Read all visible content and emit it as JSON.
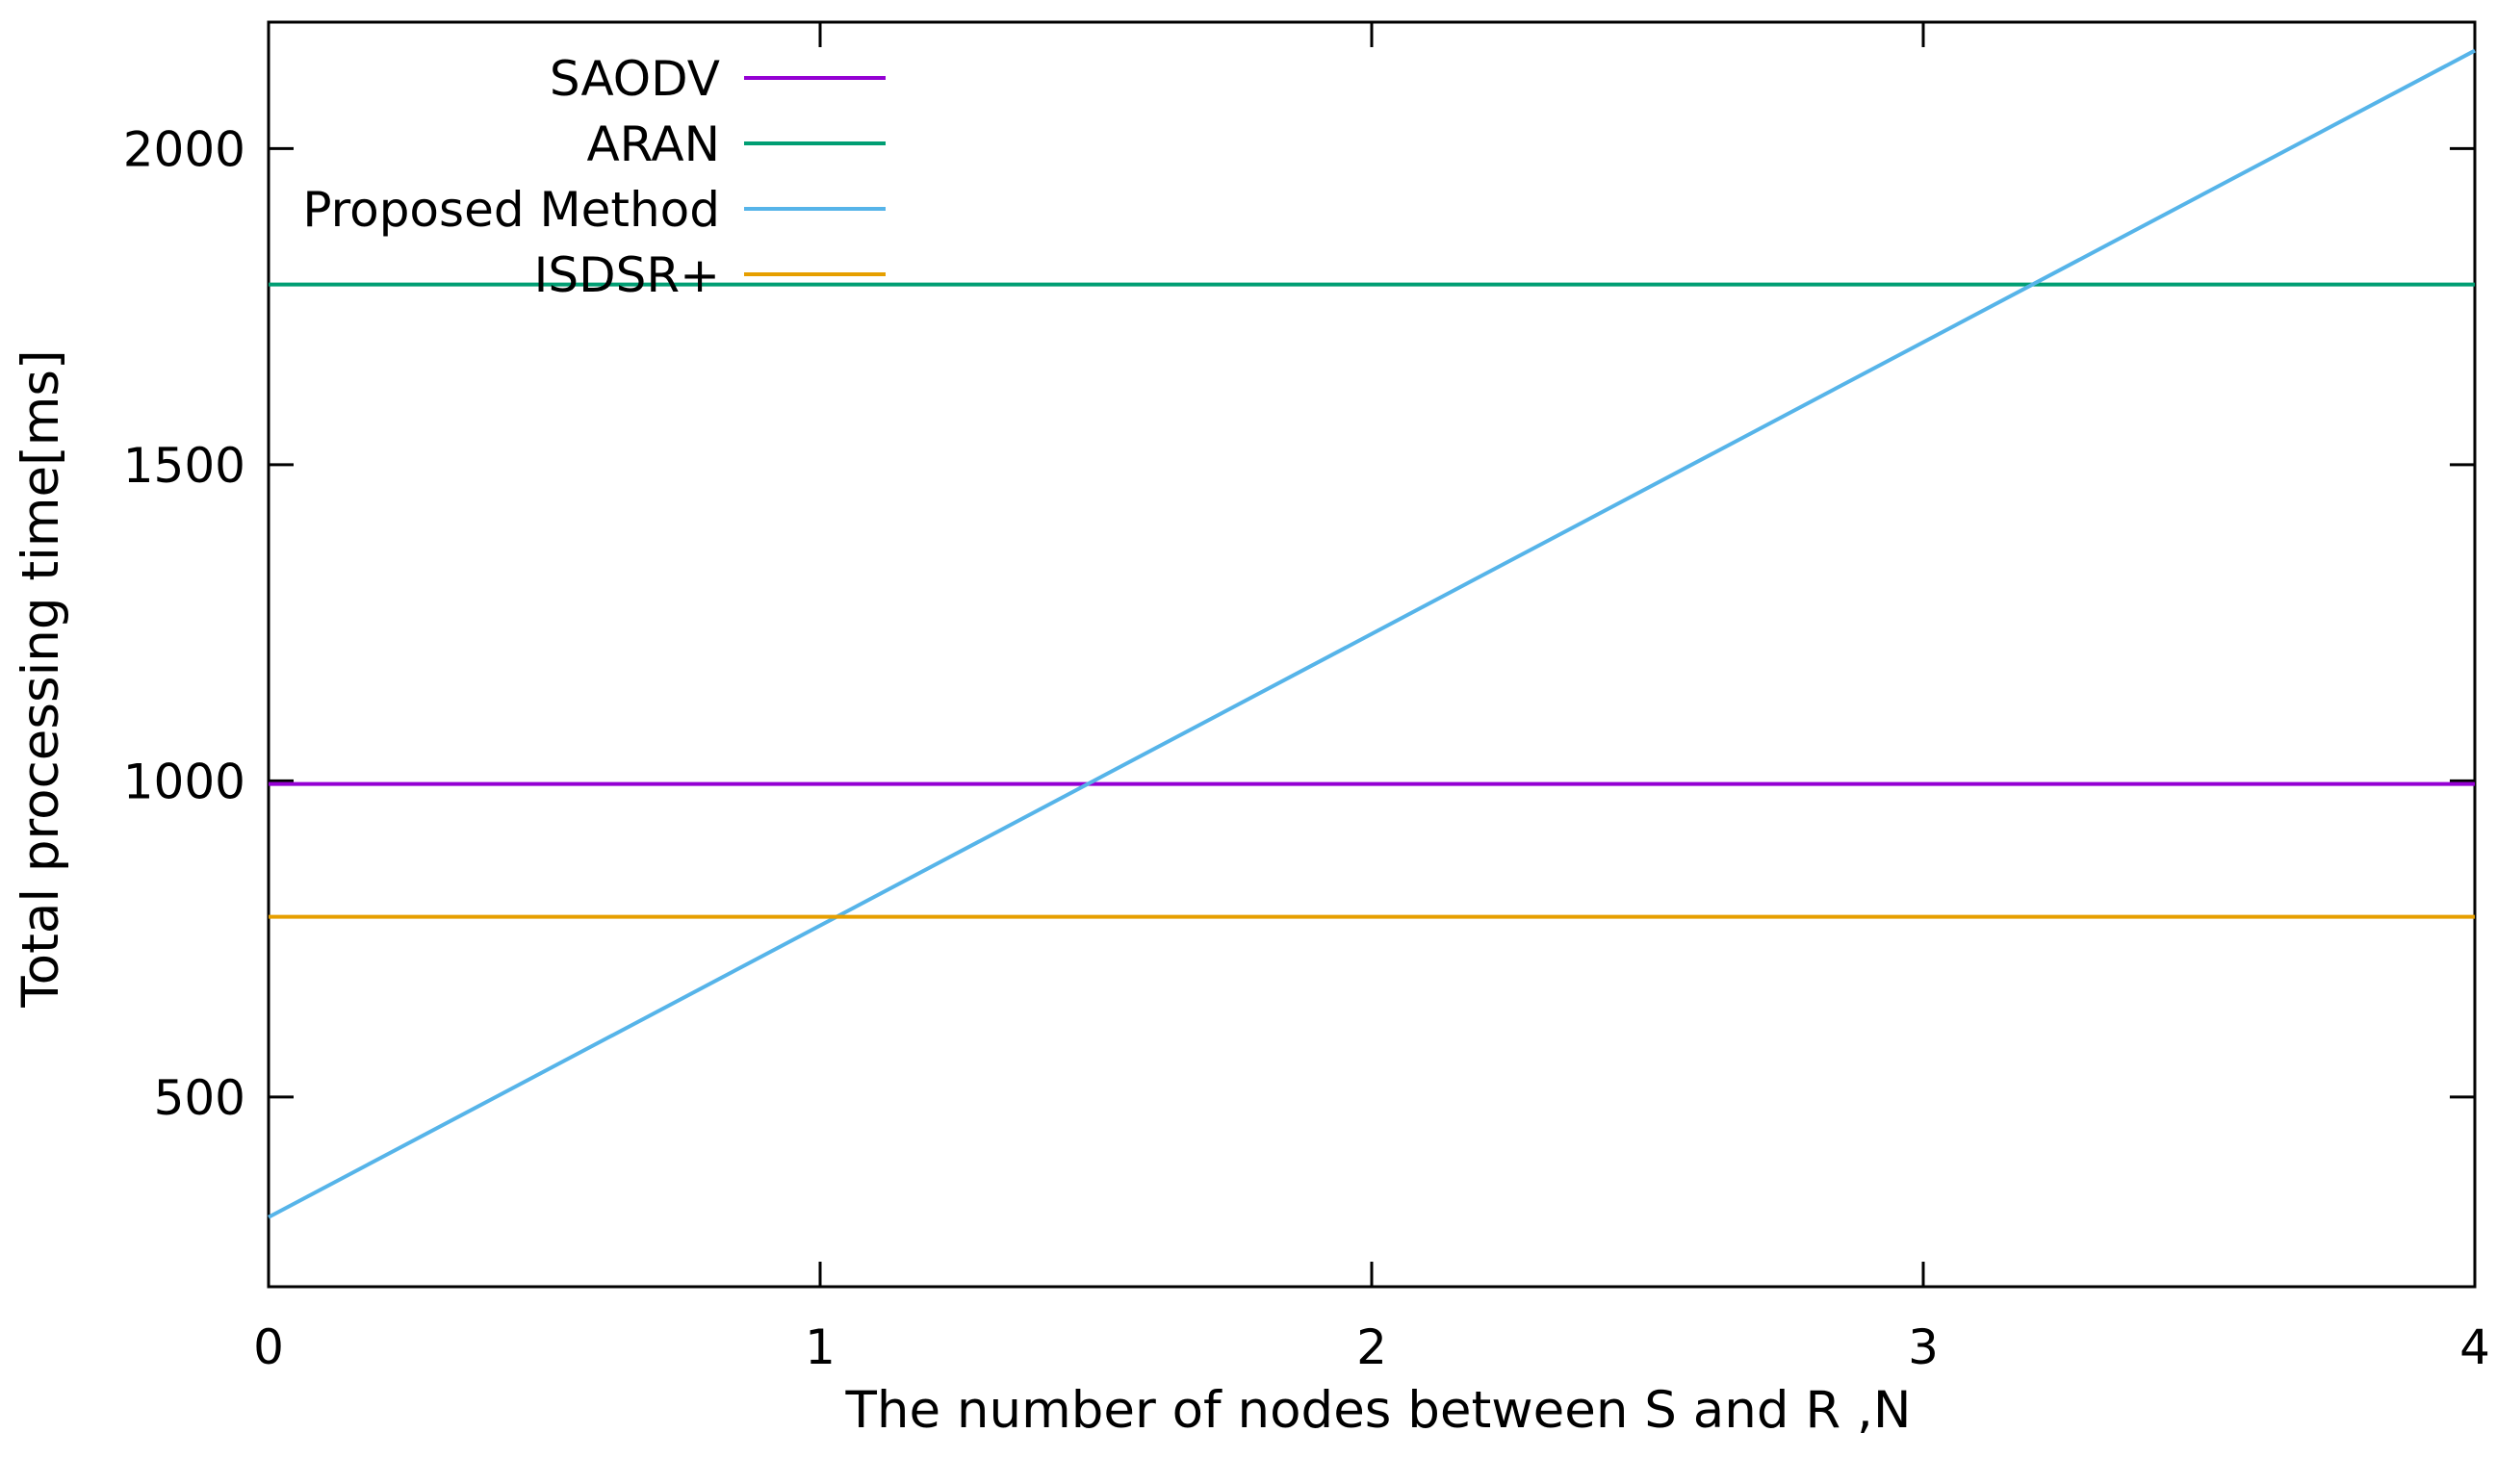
{
  "chart_data": {
    "type": "line",
    "xlabel": "The number of nodes between S and R ,N",
    "ylabel": "Total processing time[ms]",
    "xlim": [
      0,
      4
    ],
    "ylim": [
      200,
      2200
    ],
    "xticks": [
      0,
      1,
      2,
      3,
      4
    ],
    "yticks": [
      500,
      1000,
      1500,
      2000
    ],
    "grid": false,
    "legend_position": "top-left",
    "series": [
      {
        "name": "SAODV",
        "color": "#9400d3",
        "x": [
          0,
          4
        ],
        "y": [
          995,
          995
        ]
      },
      {
        "name": "ARAN",
        "color": "#009e73",
        "x": [
          0,
          4
        ],
        "y": [
          1785,
          1785
        ]
      },
      {
        "name": "Proposed Method",
        "color": "#56b4e9",
        "x": [
          0,
          4
        ],
        "y": [
          310,
          2155
        ]
      },
      {
        "name": "ISDSR+",
        "color": "#e69f00",
        "x": [
          0,
          4
        ],
        "y": [
          785,
          785
        ]
      }
    ]
  }
}
